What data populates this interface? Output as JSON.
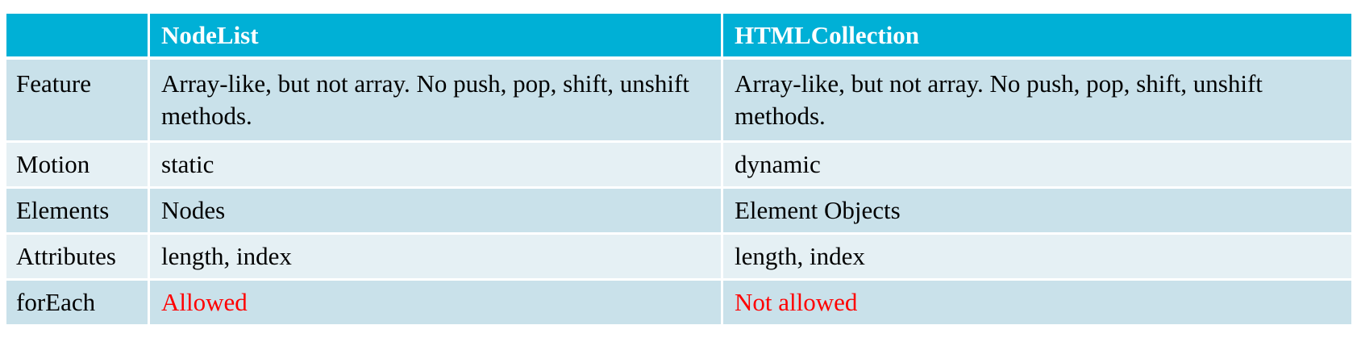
{
  "header": {
    "corner": "",
    "col1": "NodeList",
    "col2": "HTMLCollection"
  },
  "rows": [
    {
      "label": "Feature",
      "nodelist": "Array-like, but not array. No push, pop, shift, unshift methods.",
      "htmlcollection": "Array-like, but not array. No push, pop, shift, unshift methods."
    },
    {
      "label": "Motion",
      "nodelist": "static",
      "htmlcollection": "dynamic"
    },
    {
      "label": "Elements",
      "nodelist": "Nodes",
      "htmlcollection": "Element Objects"
    },
    {
      "label": "Attributes",
      "nodelist": "length, index",
      "htmlcollection": "length, index"
    },
    {
      "label": "forEach",
      "nodelist": "Allowed",
      "htmlcollection": "Not allowed"
    }
  ],
  "colors": {
    "header_bg": "#00b0d6",
    "row_dark": "#c9e1ea",
    "row_light": "#e5f0f4",
    "highlight_text": "#ff0000"
  }
}
